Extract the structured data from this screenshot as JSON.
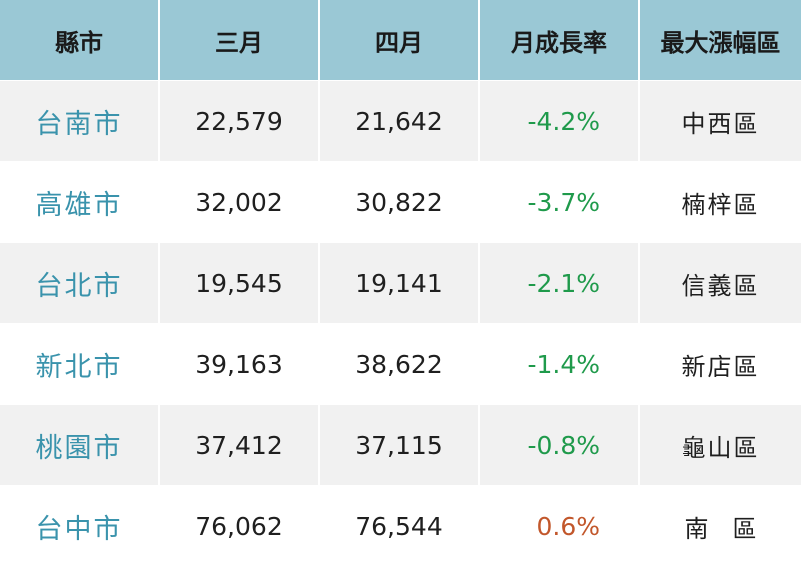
{
  "headers": [
    "縣市",
    "三月",
    "四月",
    "月成長率",
    "最大漲幅區"
  ],
  "rows": [
    {
      "county": "台南市",
      "march": "22,579",
      "april": "21,642",
      "rate": "-4.2%",
      "district": "中西區"
    },
    {
      "county": "高雄市",
      "march": "32,002",
      "april": "30,822",
      "rate": "-3.7%",
      "district": "楠梓區"
    },
    {
      "county": "台北市",
      "march": "19,545",
      "april": "19,141",
      "rate": "-2.1%",
      "district": "信義區"
    },
    {
      "county": "新北市",
      "march": "39,163",
      "april": "38,622",
      "rate": "-1.4%",
      "district": "新店區"
    },
    {
      "county": "桃園市",
      "march": "37,412",
      "april": "37,115",
      "rate": "-0.8%",
      "district": "龜山區"
    },
    {
      "county": "台中市",
      "march": "76,062",
      "april": "76,544",
      "rate": "0.6%",
      "district": "南區"
    }
  ],
  "colors": {
    "header_bg": "#9ac8d5",
    "county_text": "#3a93ac",
    "negative_rate": "#1f9a4b",
    "positive_rate": "#c2572b",
    "stripe_bg": "#f1f1f1"
  }
}
